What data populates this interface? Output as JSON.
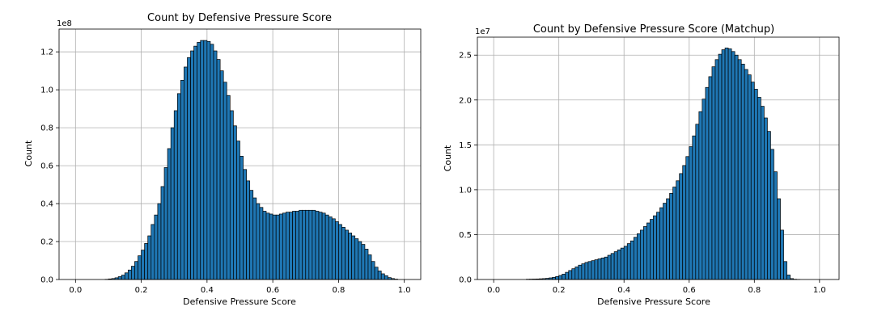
{
  "chart_data": [
    {
      "type": "bar",
      "title": "Count by Defensive Pressure Score",
      "xlabel": "Defensive Pressure Score",
      "ylabel": "Count",
      "y_offset_label": "1e8",
      "y_scale": 100000000,
      "xlim": [
        -0.05,
        1.05
      ],
      "ylim": [
        0,
        132000000
      ],
      "bin_width": 0.01,
      "bin_start": 0.0,
      "xticks": [
        "0.0",
        "0.2",
        "0.4",
        "0.6",
        "0.8",
        "1.0"
      ],
      "xtick_values": [
        0.0,
        0.2,
        0.4,
        0.6,
        0.8,
        1.0
      ],
      "yticks": [
        "0.0",
        "0.2",
        "0.4",
        "0.6",
        "0.8",
        "1.0",
        "1.2"
      ],
      "ytick_values": [
        0,
        20000000,
        40000000,
        60000000,
        80000000,
        100000000,
        120000000
      ],
      "grid": true,
      "values": [
        0,
        0,
        0,
        0,
        0,
        0,
        0,
        0,
        0,
        100000,
        300000,
        500000,
        900000,
        1500000,
        2300000,
        3500000,
        5000000,
        7000000,
        9500000,
        12500000,
        15500000,
        19000000,
        23000000,
        29000000,
        34000000,
        40000000,
        49000000,
        59000000,
        69000000,
        80000000,
        89000000,
        98000000,
        105000000,
        112000000,
        117000000,
        120500000,
        123000000,
        125000000,
        126000000,
        126000000,
        125500000,
        124000000,
        120500000,
        116000000,
        110000000,
        104000000,
        97000000,
        89000000,
        81000000,
        73000000,
        65000000,
        58000000,
        52000000,
        47000000,
        43000000,
        40000000,
        38000000,
        36000000,
        35000000,
        34500000,
        34000000,
        34000000,
        34500000,
        35000000,
        35500000,
        35500000,
        36000000,
        36000000,
        36500000,
        36500000,
        36500000,
        36500000,
        36500000,
        36000000,
        35500000,
        35000000,
        34000000,
        33000000,
        32000000,
        30500000,
        29000000,
        27500000,
        26000000,
        24500000,
        23000000,
        21500000,
        20000000,
        18500000,
        16000000,
        13000000,
        9500000,
        6500000,
        4500000,
        3000000,
        2000000,
        1000000,
        500000,
        200000,
        0,
        0
      ]
    },
    {
      "type": "bar",
      "title": "Count by Defensive Pressure Score (Matchup)",
      "xlabel": "Defensive Pressure Score",
      "ylabel": "Count",
      "y_offset_label": "1e7",
      "y_scale": 10000000,
      "xlim": [
        -0.05,
        1.06
      ],
      "ylim": [
        0,
        27000000
      ],
      "bin_width": 0.01,
      "bin_start": 0.0,
      "xticks": [
        "0.0",
        "0.2",
        "0.4",
        "0.6",
        "0.8",
        "1.0"
      ],
      "xtick_values": [
        0.0,
        0.2,
        0.4,
        0.6,
        0.8,
        1.0
      ],
      "yticks": [
        "0.0",
        "0.5",
        "1.0",
        "1.5",
        "2.0",
        "2.5"
      ],
      "ytick_values": [
        0,
        5000000,
        10000000,
        15000000,
        20000000,
        25000000
      ],
      "grid": true,
      "values": [
        0,
        0,
        0,
        0,
        0,
        0,
        0,
        0,
        0,
        0,
        30000,
        40000,
        50000,
        60000,
        80000,
        100000,
        130000,
        180000,
        240000,
        330000,
        450000,
        600000,
        800000,
        1000000,
        1200000,
        1400000,
        1600000,
        1750000,
        1900000,
        2000000,
        2100000,
        2200000,
        2300000,
        2400000,
        2500000,
        2700000,
        2900000,
        3100000,
        3300000,
        3500000,
        3700000,
        4000000,
        4300000,
        4700000,
        5100000,
        5500000,
        5900000,
        6300000,
        6700000,
        7100000,
        7500000,
        8000000,
        8500000,
        9000000,
        9600000,
        10300000,
        11000000,
        11800000,
        12700000,
        13700000,
        14800000,
        16000000,
        17300000,
        18700000,
        20100000,
        21400000,
        22600000,
        23700000,
        24500000,
        25100000,
        25600000,
        25800000,
        25700000,
        25400000,
        25000000,
        24500000,
        24000000,
        23400000,
        22800000,
        22000000,
        21200000,
        20300000,
        19300000,
        18000000,
        16500000,
        14500000,
        12000000,
        9000000,
        5500000,
        2000000,
        500000,
        100000,
        30000,
        10000,
        0,
        0,
        0,
        0,
        0,
        0
      ]
    }
  ]
}
